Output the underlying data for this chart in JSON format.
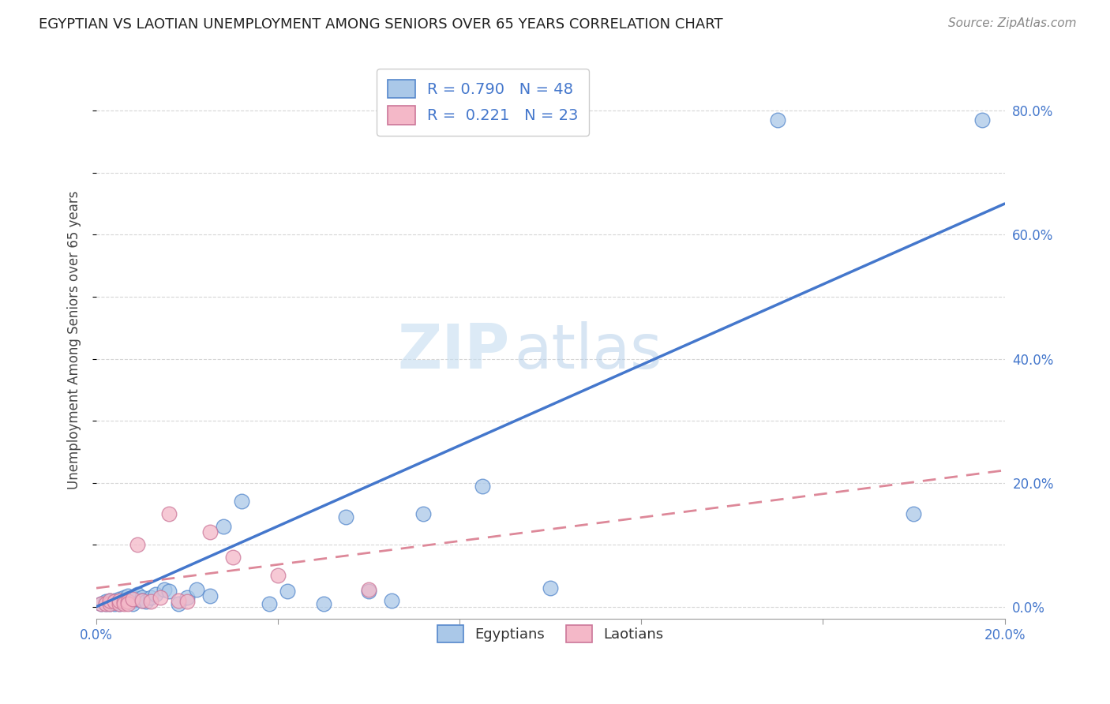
{
  "title": "EGYPTIAN VS LAOTIAN UNEMPLOYMENT AMONG SENIORS OVER 65 YEARS CORRELATION CHART",
  "source": "Source: ZipAtlas.com",
  "ylabel": "Unemployment Among Seniors over 65 years",
  "xlim": [
    0.0,
    0.2
  ],
  "ylim": [
    -0.02,
    0.88
  ],
  "xticks": [
    0.0,
    0.04,
    0.08,
    0.12,
    0.16,
    0.2
  ],
  "yticks": [
    0.0,
    0.2,
    0.4,
    0.6,
    0.8
  ],
  "ytick_labels_left": [
    "",
    "",
    "",
    "",
    ""
  ],
  "ytick_labels_right": [
    "0.0%",
    "20.0%",
    "40.0%",
    "60.0%",
    "80.0%"
  ],
  "xtick_labels": [
    "0.0%",
    "",
    "",
    "",
    "",
    "20.0%"
  ],
  "background_color": "#ffffff",
  "grid_color": "#cccccc",
  "egyptian_color": "#aac8e8",
  "laotian_color": "#f4b8c8",
  "egyptian_edge_color": "#5588cc",
  "laotian_edge_color": "#cc7799",
  "egyptian_line_color": "#4477cc",
  "laotian_line_color": "#dd8899",
  "legend_R1": "0.790",
  "legend_N1": "48",
  "legend_R2": "0.221",
  "legend_N2": "23",
  "egyptian_x": [
    0.001,
    0.002,
    0.002,
    0.003,
    0.003,
    0.003,
    0.004,
    0.004,
    0.004,
    0.005,
    0.005,
    0.005,
    0.006,
    0.006,
    0.006,
    0.007,
    0.007,
    0.007,
    0.008,
    0.008,
    0.008,
    0.009,
    0.009,
    0.01,
    0.01,
    0.011,
    0.012,
    0.013,
    0.015,
    0.016,
    0.018,
    0.02,
    0.022,
    0.025,
    0.028,
    0.032,
    0.038,
    0.042,
    0.05,
    0.055,
    0.06,
    0.065,
    0.072,
    0.085,
    0.1,
    0.15,
    0.18,
    0.195
  ],
  "egyptian_y": [
    0.005,
    0.005,
    0.008,
    0.005,
    0.008,
    0.01,
    0.005,
    0.008,
    0.01,
    0.005,
    0.008,
    0.012,
    0.008,
    0.01,
    0.015,
    0.008,
    0.012,
    0.018,
    0.01,
    0.015,
    0.005,
    0.012,
    0.02,
    0.015,
    0.01,
    0.008,
    0.015,
    0.02,
    0.028,
    0.025,
    0.005,
    0.015,
    0.028,
    0.018,
    0.13,
    0.17,
    0.005,
    0.025,
    0.005,
    0.145,
    0.025,
    0.01,
    0.15,
    0.195,
    0.03,
    0.785,
    0.15,
    0.785
  ],
  "laotian_x": [
    0.001,
    0.002,
    0.003,
    0.003,
    0.004,
    0.005,
    0.005,
    0.006,
    0.006,
    0.007,
    0.007,
    0.008,
    0.009,
    0.01,
    0.012,
    0.014,
    0.016,
    0.018,
    0.02,
    0.025,
    0.03,
    0.04,
    0.06
  ],
  "laotian_y": [
    0.005,
    0.005,
    0.005,
    0.01,
    0.008,
    0.005,
    0.01,
    0.008,
    0.005,
    0.008,
    0.005,
    0.012,
    0.1,
    0.01,
    0.008,
    0.015,
    0.15,
    0.01,
    0.008,
    0.12,
    0.08,
    0.05,
    0.028
  ],
  "egline_x": [
    0.0,
    0.2
  ],
  "egline_y": [
    0.0,
    0.65
  ],
  "laline_x": [
    0.0,
    0.2
  ],
  "laline_y": [
    0.03,
    0.22
  ]
}
